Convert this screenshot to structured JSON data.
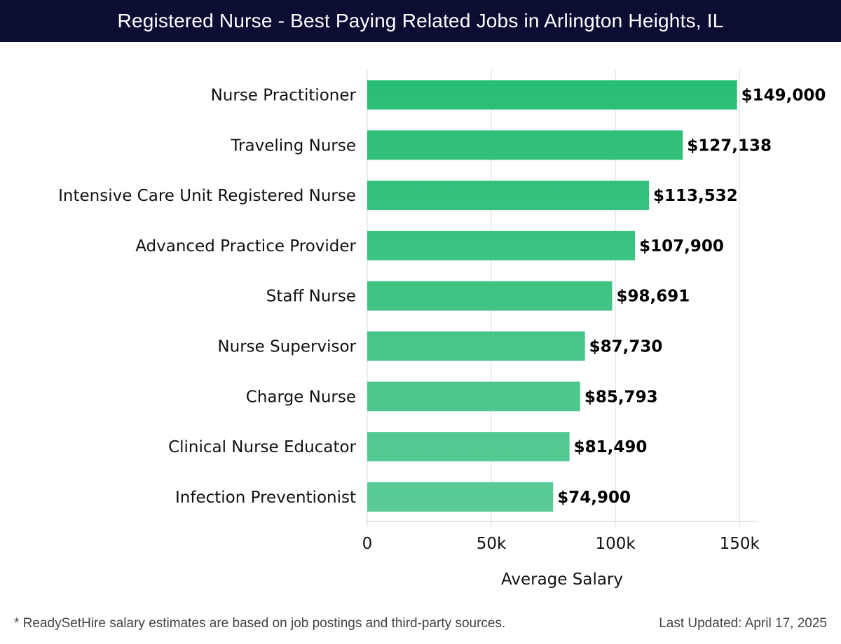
{
  "header": {
    "title": "Registered Nurse - Best Paying Related Jobs in Arlington Heights, IL"
  },
  "footer": {
    "note": "* ReadySetHire salary estimates are based on job postings and third-party sources.",
    "updated": "Last Updated: April 17, 2025"
  },
  "colors": {
    "header_bg": "#0b0d33",
    "bar_top": "#27bd73",
    "bar_bottom": "#5bcb98",
    "grid": "#e2e2e2"
  },
  "chart_data": {
    "type": "bar",
    "orientation": "horizontal",
    "title": "",
    "xlabel": "Average Salary",
    "ylabel": "",
    "xlim": [
      0,
      157000
    ],
    "grid": true,
    "categories": [
      "Nurse Practitioner",
      "Traveling Nurse",
      "Intensive Care Unit Registered Nurse",
      "Advanced Practice Provider",
      "Staff Nurse",
      "Nurse Supervisor",
      "Charge Nurse",
      "Clinical Nurse Educator",
      "Infection Preventionist"
    ],
    "values": [
      149000,
      127138,
      113532,
      107900,
      98691,
      87730,
      85793,
      81490,
      74900
    ],
    "value_labels": [
      "$149,000",
      "$127,138",
      "$113,532",
      "$107,900",
      "$98,691",
      "$87,730",
      "$85,793",
      "$81,490",
      "$74,900"
    ],
    "ticks": [
      0,
      50000,
      100000,
      150000
    ],
    "tick_labels": [
      "0",
      "50k",
      "100k",
      "150k"
    ]
  }
}
